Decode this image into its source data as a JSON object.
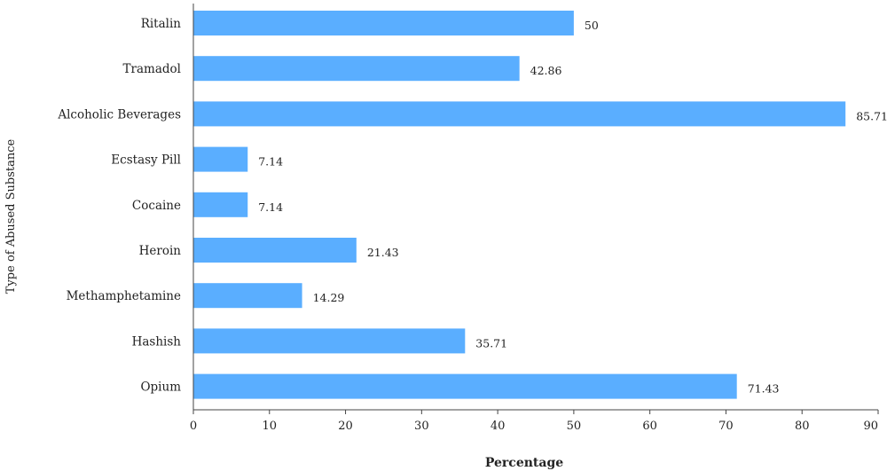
{
  "chart_data": {
    "type": "bar",
    "orientation": "horizontal",
    "xlabel": "Percentage",
    "ylabel": "Type of Abused Substance",
    "xlim": [
      0,
      90
    ],
    "xticks": [
      0,
      10,
      20,
      30,
      40,
      50,
      60,
      70,
      80,
      90
    ],
    "grid": false,
    "bar_color": "#5aaeff",
    "categories": [
      "Ritalin",
      "Tramadol",
      "Alcoholic Beverages",
      "Ecstasy Pill",
      "Cocaine",
      "Heroin",
      "Methamphetamine",
      "Hashish",
      "Opium"
    ],
    "values": [
      50,
      42.86,
      85.71,
      7.14,
      7.14,
      21.43,
      14.29,
      35.71,
      71.43
    ],
    "value_labels": [
      "50",
      "42.86",
      "85.71",
      "7.14",
      "7.14",
      "21.43",
      "14.29",
      "35.71",
      "71.43"
    ]
  }
}
